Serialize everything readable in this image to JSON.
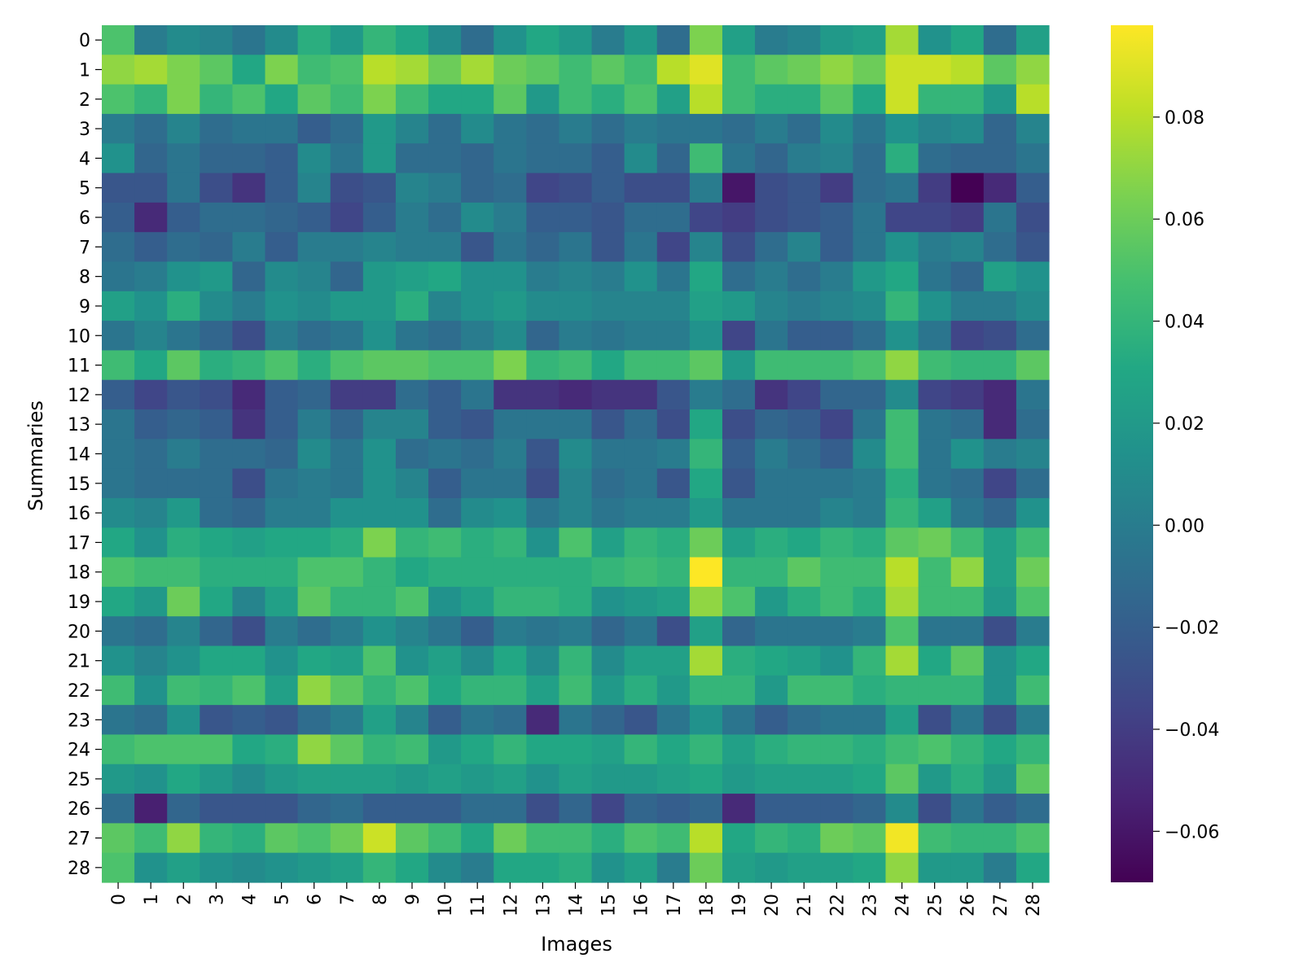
{
  "chart_data": {
    "type": "heatmap",
    "title": "",
    "xlabel": "Images",
    "ylabel": "Summaries",
    "x_categories": [
      "0",
      "1",
      "2",
      "3",
      "4",
      "5",
      "6",
      "7",
      "8",
      "9",
      "10",
      "11",
      "12",
      "13",
      "14",
      "15",
      "16",
      "17",
      "18",
      "19",
      "20",
      "21",
      "22",
      "23",
      "24",
      "25",
      "26",
      "27",
      "28"
    ],
    "y_categories": [
      "0",
      "1",
      "2",
      "3",
      "4",
      "5",
      "6",
      "7",
      "8",
      "9",
      "10",
      "11",
      "12",
      "13",
      "14",
      "15",
      "16",
      "17",
      "18",
      "19",
      "20",
      "21",
      "22",
      "23",
      "24",
      "25",
      "26",
      "27",
      "28"
    ],
    "colormap": "viridis",
    "vmin": -0.07,
    "vmax": 0.098,
    "colorbar_ticks": [
      0.08,
      0.06,
      0.04,
      0.02,
      0.0,
      -0.02,
      -0.04,
      -0.06
    ],
    "colorbar_tick_labels": [
      "0.08",
      "0.06",
      "0.04",
      "0.02",
      "0.00",
      "−0.02",
      "−0.04",
      "−0.06"
    ],
    "values": [
      [
        0.05,
        0.0,
        0.01,
        0.005,
        -0.005,
        0.01,
        0.035,
        0.02,
        0.04,
        0.03,
        0.01,
        -0.01,
        0.015,
        0.03,
        0.02,
        0.0,
        0.02,
        -0.01,
        0.065,
        0.025,
        0.0,
        0.005,
        0.02,
        0.025,
        0.075,
        0.015,
        0.03,
        -0.01,
        0.025
      ],
      [
        0.07,
        0.075,
        0.065,
        0.055,
        0.03,
        0.065,
        0.045,
        0.05,
        0.08,
        0.075,
        0.06,
        0.075,
        0.06,
        0.055,
        0.045,
        0.055,
        0.045,
        0.08,
        0.09,
        0.045,
        0.055,
        0.06,
        0.07,
        0.06,
        0.085,
        0.085,
        0.08,
        0.055,
        0.07
      ],
      [
        0.05,
        0.04,
        0.065,
        0.04,
        0.05,
        0.03,
        0.055,
        0.045,
        0.065,
        0.045,
        0.03,
        0.03,
        0.055,
        0.02,
        0.045,
        0.035,
        0.05,
        0.025,
        0.08,
        0.045,
        0.035,
        0.035,
        0.055,
        0.03,
        0.085,
        0.04,
        0.04,
        0.02,
        0.08
      ],
      [
        0.0,
        -0.01,
        0.005,
        -0.01,
        -0.005,
        -0.005,
        -0.02,
        -0.01,
        0.02,
        0.005,
        -0.01,
        0.01,
        -0.005,
        -0.01,
        0.0,
        -0.01,
        0.0,
        -0.005,
        -0.005,
        -0.01,
        0.0,
        -0.01,
        0.01,
        -0.005,
        0.015,
        0.005,
        0.01,
        -0.015,
        0.005
      ],
      [
        0.015,
        -0.015,
        -0.005,
        -0.015,
        -0.015,
        -0.02,
        0.01,
        -0.005,
        0.02,
        -0.01,
        -0.01,
        -0.015,
        -0.005,
        -0.01,
        -0.01,
        -0.02,
        0.01,
        -0.015,
        0.045,
        -0.005,
        -0.015,
        0.0,
        0.005,
        -0.01,
        0.035,
        -0.01,
        -0.015,
        -0.015,
        -0.005
      ],
      [
        -0.025,
        -0.025,
        -0.005,
        -0.03,
        -0.045,
        -0.02,
        0.005,
        -0.03,
        -0.025,
        0.005,
        0.0,
        -0.015,
        -0.01,
        -0.035,
        -0.03,
        -0.02,
        -0.03,
        -0.03,
        0.0,
        -0.06,
        -0.03,
        -0.025,
        -0.04,
        -0.01,
        -0.005,
        -0.04,
        -0.07,
        -0.05,
        -0.02
      ],
      [
        -0.02,
        -0.05,
        -0.02,
        -0.01,
        -0.01,
        -0.015,
        -0.02,
        -0.035,
        -0.02,
        0.0,
        -0.01,
        0.01,
        0.0,
        -0.02,
        -0.02,
        -0.025,
        -0.01,
        -0.01,
        -0.035,
        -0.04,
        -0.03,
        -0.025,
        -0.02,
        -0.005,
        -0.035,
        -0.035,
        -0.04,
        -0.005,
        -0.03
      ],
      [
        -0.01,
        -0.02,
        -0.01,
        -0.015,
        0.0,
        -0.02,
        0.0,
        0.0,
        0.005,
        0.0,
        0.0,
        -0.025,
        -0.005,
        -0.015,
        -0.005,
        -0.025,
        -0.005,
        -0.035,
        0.005,
        -0.03,
        -0.01,
        0.005,
        -0.02,
        -0.005,
        0.015,
        0.0,
        0.005,
        -0.01,
        -0.025
      ],
      [
        -0.005,
        0.0,
        0.015,
        0.02,
        -0.015,
        0.01,
        0.005,
        -0.015,
        0.02,
        0.025,
        0.03,
        0.015,
        0.015,
        0.0,
        0.005,
        0.0,
        0.015,
        -0.005,
        0.03,
        -0.01,
        0.0,
        -0.01,
        0.0,
        0.02,
        0.03,
        -0.005,
        -0.015,
        0.025,
        0.015
      ],
      [
        0.025,
        0.015,
        0.035,
        0.01,
        0.0,
        0.015,
        0.01,
        0.02,
        0.02,
        0.035,
        0.005,
        0.015,
        0.02,
        0.01,
        0.01,
        0.005,
        0.005,
        0.005,
        0.025,
        0.02,
        0.005,
        0.0,
        0.005,
        0.01,
        0.04,
        0.015,
        0.0,
        0.0,
        0.01
      ],
      [
        -0.005,
        0.005,
        -0.005,
        -0.015,
        -0.03,
        0.0,
        -0.01,
        -0.005,
        0.015,
        -0.005,
        -0.01,
        0.0,
        0.01,
        -0.015,
        0.0,
        -0.005,
        0.0,
        0.0,
        0.015,
        -0.035,
        -0.005,
        -0.02,
        -0.02,
        -0.01,
        0.015,
        -0.005,
        -0.035,
        -0.03,
        -0.01
      ],
      [
        0.045,
        0.03,
        0.055,
        0.035,
        0.04,
        0.05,
        0.035,
        0.05,
        0.055,
        0.055,
        0.05,
        0.05,
        0.065,
        0.04,
        0.045,
        0.03,
        0.045,
        0.045,
        0.055,
        0.02,
        0.045,
        0.045,
        0.045,
        0.05,
        0.07,
        0.045,
        0.04,
        0.04,
        0.055
      ],
      [
        -0.02,
        -0.035,
        -0.025,
        -0.03,
        -0.05,
        -0.02,
        -0.015,
        -0.04,
        -0.04,
        -0.01,
        -0.02,
        -0.005,
        -0.045,
        -0.045,
        -0.05,
        -0.045,
        -0.045,
        -0.025,
        0.0,
        -0.01,
        -0.045,
        -0.035,
        -0.015,
        -0.015,
        0.01,
        -0.035,
        -0.04,
        -0.05,
        -0.005
      ],
      [
        -0.005,
        -0.02,
        -0.015,
        -0.02,
        -0.045,
        -0.02,
        0.0,
        -0.015,
        0.005,
        0.005,
        -0.02,
        -0.025,
        -0.005,
        -0.005,
        -0.005,
        -0.025,
        -0.01,
        -0.03,
        0.03,
        -0.03,
        -0.015,
        -0.02,
        -0.035,
        -0.005,
        0.045,
        -0.005,
        -0.01,
        -0.05,
        -0.01
      ],
      [
        -0.005,
        -0.01,
        0.0,
        -0.01,
        -0.01,
        -0.015,
        0.01,
        -0.005,
        0.015,
        -0.01,
        -0.005,
        -0.01,
        0.0,
        -0.025,
        0.01,
        -0.005,
        -0.005,
        0.0,
        0.04,
        -0.02,
        0.0,
        -0.01,
        -0.02,
        0.01,
        0.045,
        -0.005,
        0.015,
        0.0,
        0.005
      ],
      [
        -0.005,
        -0.01,
        -0.01,
        -0.01,
        -0.03,
        -0.005,
        0.0,
        -0.005,
        0.015,
        0.005,
        -0.02,
        -0.005,
        -0.005,
        -0.03,
        0.005,
        -0.01,
        -0.005,
        -0.025,
        0.03,
        -0.025,
        -0.005,
        -0.005,
        -0.005,
        0.0,
        0.035,
        -0.005,
        -0.01,
        -0.035,
        -0.01
      ],
      [
        0.01,
        0.005,
        0.02,
        -0.01,
        -0.015,
        0.0,
        0.0,
        0.015,
        0.015,
        0.015,
        -0.01,
        0.01,
        0.015,
        -0.005,
        0.005,
        -0.005,
        0.0,
        0.0,
        0.02,
        -0.005,
        -0.005,
        -0.005,
        0.005,
        0.0,
        0.04,
        0.025,
        -0.005,
        -0.015,
        0.015
      ],
      [
        0.03,
        0.015,
        0.035,
        0.03,
        0.025,
        0.03,
        0.03,
        0.035,
        0.065,
        0.04,
        0.045,
        0.035,
        0.04,
        0.015,
        0.05,
        0.025,
        0.04,
        0.035,
        0.06,
        0.025,
        0.035,
        0.03,
        0.04,
        0.035,
        0.055,
        0.06,
        0.045,
        0.025,
        0.045
      ],
      [
        0.05,
        0.045,
        0.045,
        0.035,
        0.035,
        0.035,
        0.05,
        0.05,
        0.04,
        0.03,
        0.035,
        0.035,
        0.035,
        0.035,
        0.035,
        0.04,
        0.045,
        0.04,
        0.098,
        0.04,
        0.04,
        0.055,
        0.045,
        0.045,
        0.08,
        0.045,
        0.07,
        0.025,
        0.06
      ],
      [
        0.03,
        0.02,
        0.06,
        0.03,
        0.005,
        0.025,
        0.055,
        0.04,
        0.04,
        0.05,
        0.015,
        0.025,
        0.04,
        0.04,
        0.035,
        0.015,
        0.02,
        0.025,
        0.07,
        0.05,
        0.02,
        0.035,
        0.045,
        0.035,
        0.075,
        0.045,
        0.045,
        0.02,
        0.05
      ],
      [
        -0.005,
        -0.01,
        0.005,
        -0.015,
        -0.03,
        0.0,
        -0.01,
        0.0,
        0.015,
        0.005,
        -0.005,
        -0.02,
        0.0,
        -0.005,
        0.0,
        -0.015,
        -0.005,
        -0.03,
        0.025,
        -0.015,
        -0.005,
        -0.005,
        -0.005,
        0.0,
        0.05,
        -0.005,
        -0.005,
        -0.03,
        0.0
      ],
      [
        0.015,
        0.005,
        0.015,
        0.03,
        0.03,
        0.015,
        0.03,
        0.025,
        0.05,
        0.015,
        0.025,
        0.01,
        0.03,
        0.01,
        0.04,
        0.01,
        0.025,
        0.025,
        0.075,
        0.035,
        0.03,
        0.025,
        0.015,
        0.04,
        0.075,
        0.03,
        0.055,
        0.015,
        0.03
      ],
      [
        0.045,
        0.015,
        0.045,
        0.04,
        0.05,
        0.025,
        0.07,
        0.055,
        0.04,
        0.05,
        0.03,
        0.04,
        0.04,
        0.025,
        0.045,
        0.02,
        0.035,
        0.02,
        0.04,
        0.04,
        0.02,
        0.045,
        0.045,
        0.035,
        0.04,
        0.04,
        0.04,
        0.015,
        0.045
      ],
      [
        -0.005,
        -0.01,
        0.015,
        -0.025,
        -0.02,
        -0.025,
        -0.01,
        0.0,
        0.025,
        0.005,
        -0.02,
        -0.005,
        -0.01,
        -0.05,
        -0.005,
        -0.015,
        -0.025,
        -0.005,
        0.015,
        -0.005,
        -0.02,
        -0.01,
        -0.005,
        -0.005,
        0.025,
        -0.03,
        -0.005,
        -0.03,
        0.0
      ],
      [
        0.045,
        0.05,
        0.05,
        0.05,
        0.03,
        0.035,
        0.07,
        0.055,
        0.04,
        0.045,
        0.02,
        0.03,
        0.04,
        0.03,
        0.03,
        0.025,
        0.04,
        0.03,
        0.04,
        0.025,
        0.035,
        0.04,
        0.04,
        0.035,
        0.045,
        0.05,
        0.04,
        0.03,
        0.04
      ],
      [
        0.02,
        0.015,
        0.03,
        0.02,
        0.01,
        0.02,
        0.025,
        0.025,
        0.025,
        0.02,
        0.025,
        0.02,
        0.025,
        0.015,
        0.025,
        0.02,
        0.02,
        0.025,
        0.03,
        0.02,
        0.025,
        0.025,
        0.025,
        0.03,
        0.055,
        0.02,
        0.035,
        0.02,
        0.055
      ],
      [
        -0.01,
        -0.055,
        -0.015,
        -0.025,
        -0.025,
        -0.025,
        -0.015,
        -0.01,
        -0.02,
        -0.02,
        -0.02,
        -0.01,
        -0.01,
        -0.03,
        -0.015,
        -0.035,
        -0.015,
        -0.02,
        -0.015,
        -0.05,
        -0.02,
        -0.02,
        -0.02,
        -0.015,
        0.01,
        -0.03,
        -0.005,
        -0.02,
        -0.01
      ],
      [
        0.055,
        0.045,
        0.07,
        0.04,
        0.035,
        0.055,
        0.05,
        0.06,
        0.085,
        0.055,
        0.045,
        0.03,
        0.06,
        0.045,
        0.045,
        0.035,
        0.05,
        0.045,
        0.08,
        0.03,
        0.04,
        0.035,
        0.06,
        0.055,
        0.095,
        0.045,
        0.04,
        0.04,
        0.05
      ],
      [
        0.05,
        0.015,
        0.025,
        0.015,
        0.01,
        0.015,
        0.02,
        0.025,
        0.04,
        0.03,
        0.01,
        0.0,
        0.03,
        0.03,
        0.035,
        0.015,
        0.025,
        0.0,
        0.06,
        0.025,
        0.02,
        0.025,
        0.025,
        0.03,
        0.07,
        0.02,
        0.02,
        0.0,
        0.03
      ]
    ]
  }
}
